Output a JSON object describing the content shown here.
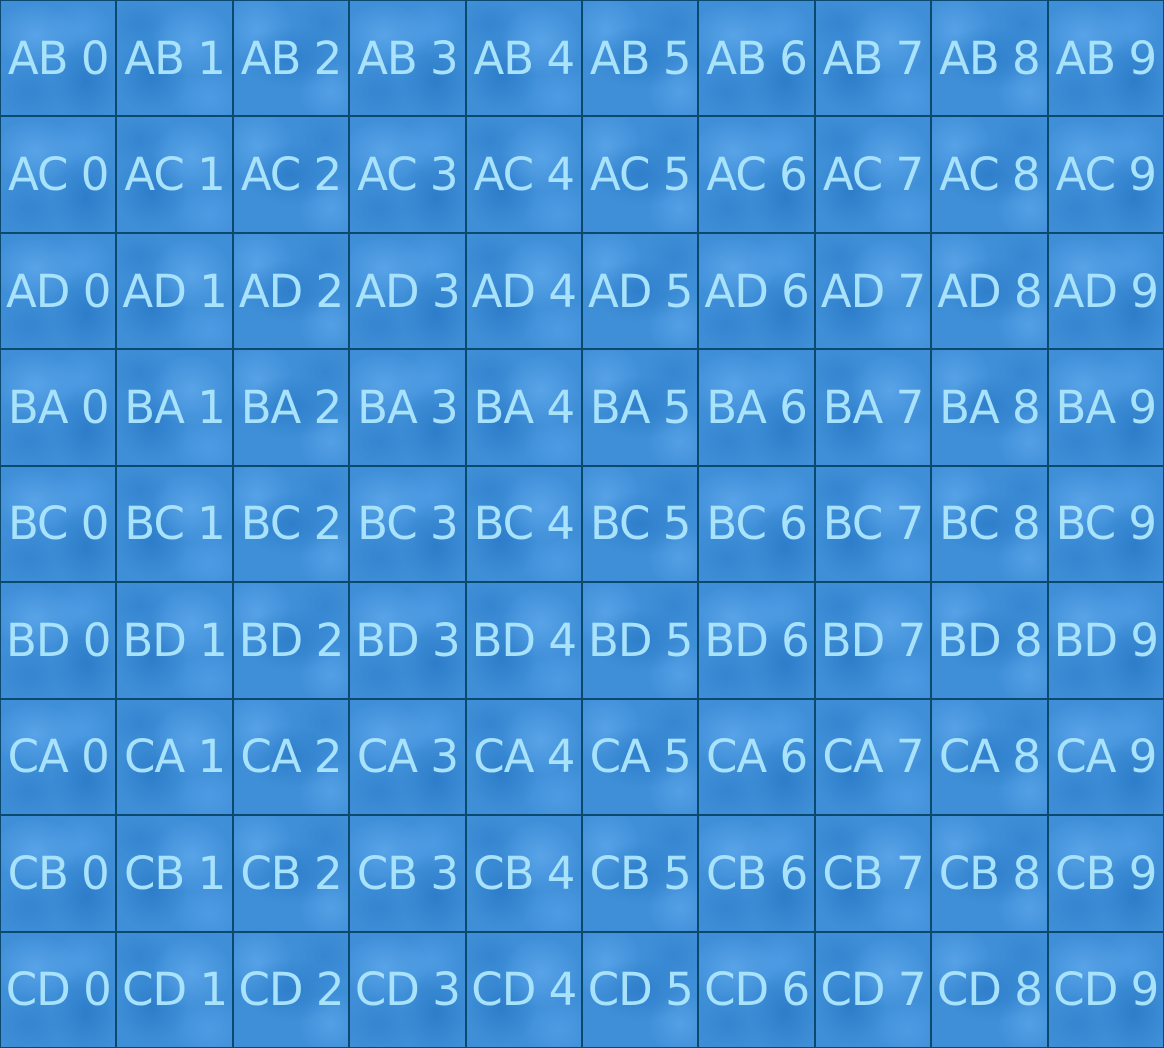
{
  "rows": [
    [
      "AB 0",
      "AB 1",
      "AB 2",
      "AB 3",
      "AB 4",
      "AB 5",
      "AB 6",
      "AB 7",
      "AB 8",
      "AB 9"
    ],
    [
      "AC 0",
      "AC 1",
      "AC 2",
      "AC 3",
      "AC 4",
      "AC 5",
      "AC 6",
      "AC 7",
      "AC 8",
      "AC 9"
    ],
    [
      "AD 0",
      "AD 1",
      "AD 2",
      "AD 3",
      "AD 4",
      "AD 5",
      "AD 6",
      "AD 7",
      "AD 8",
      "AD 9"
    ],
    [
      "BA 0",
      "BA 1",
      "BA 2",
      "BA 3",
      "BA 4",
      "BA 5",
      "BA 6",
      "BA 7",
      "BA 8",
      "BA 9"
    ],
    [
      "BC 0",
      "BC 1",
      "BC 2",
      "BC 3",
      "BC 4",
      "BC 5",
      "BC 6",
      "BC 7",
      "BC 8",
      "BC 9"
    ],
    [
      "BD 0",
      "BD 1",
      "BD 2",
      "BD 3",
      "BD 4",
      "BD 5",
      "BD 6",
      "BD 7",
      "BD 8",
      "BD 9"
    ],
    [
      "CA 0",
      "CA 1",
      "CA 2",
      "CA 3",
      "CA 4",
      "CA 5",
      "CA 6",
      "CA 7",
      "CA 8",
      "CA 9"
    ],
    [
      "CB 0",
      "CB 1",
      "CB 2",
      "CB 3",
      "CB 4",
      "CB 5",
      "CB 6",
      "CB 7",
      "CB 8",
      "CB 9"
    ],
    [
      "CD 0",
      "CD 1",
      "CD 2",
      "CD 3",
      "CD 4",
      "CD 5",
      "CD 6",
      "CD 7",
      "CD 8",
      "CD 9"
    ]
  ],
  "colors": {
    "tile_base": "#3f8fd8",
    "grid_line": "#0b4a6e",
    "label": "#a8e2fb"
  }
}
